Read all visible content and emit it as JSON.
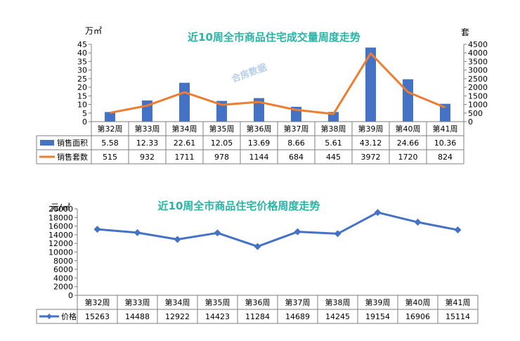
{
  "chart_data": [
    {
      "type": "bar",
      "title": "近10周全市商品住宅成交量周度走势",
      "categories": [
        "第32周",
        "第33周",
        "第34周",
        "第35周",
        "第36周",
        "第37周",
        "第38周",
        "第39周",
        "第40周",
        "第41周"
      ],
      "left_unit": "万㎡",
      "right_unit": "套",
      "ylim_left": [
        0,
        45
      ],
      "ylim_right": [
        0,
        4500
      ],
      "left_ticks": [
        "0",
        "5",
        "10",
        "15",
        "20",
        "25",
        "30",
        "35",
        "40",
        "45"
      ],
      "right_ticks": [
        "0",
        "500",
        "1000",
        "1500",
        "2000",
        "2500",
        "3000",
        "3500",
        "4000",
        "4500"
      ],
      "series": [
        {
          "name": "销售面积",
          "kind": "bar",
          "axis": "left",
          "color": "#4472c4",
          "values": [
            5.58,
            12.33,
            22.61,
            12.05,
            13.69,
            8.66,
            5.61,
            43.12,
            24.66,
            10.36
          ],
          "labels": [
            "5.58",
            "12.33",
            "22.61",
            "12.05",
            "13.69",
            "8.66",
            "5.61",
            "43.12",
            "24.66",
            "10.36"
          ]
        },
        {
          "name": "销售套数",
          "kind": "line",
          "axis": "right",
          "color": "#ed7d31",
          "values": [
            515,
            932,
            1711,
            978,
            1144,
            684,
            445,
            3972,
            1720,
            824
          ],
          "labels": [
            "515",
            "932",
            "1711",
            "978",
            "1144",
            "684",
            "445",
            "3972",
            "1720",
            "824"
          ]
        }
      ],
      "watermark": "合房数据"
    },
    {
      "type": "line",
      "title": "近10周全市商品住宅价格周度走势",
      "categories": [
        "第32周",
        "第33周",
        "第34周",
        "第35周",
        "第36周",
        "第37周",
        "第38周",
        "第39周",
        "第40周",
        "第41周"
      ],
      "unit": "元/㎡",
      "ylim": [
        0,
        20000
      ],
      "ticks": [
        "0",
        "2000",
        "4000",
        "6000",
        "8000",
        "10000",
        "12000",
        "14000",
        "16000",
        "18000",
        "20000"
      ],
      "series": [
        {
          "name": "价格",
          "kind": "line",
          "color": "#4472c4",
          "values": [
            15263,
            14488,
            12922,
            14423,
            11284,
            14689,
            14245,
            19154,
            16906,
            15114
          ],
          "labels": [
            "15263",
            "14488",
            "12922",
            "14423",
            "11284",
            "14689",
            "14245",
            "19154",
            "16906",
            "15114"
          ]
        }
      ]
    }
  ]
}
